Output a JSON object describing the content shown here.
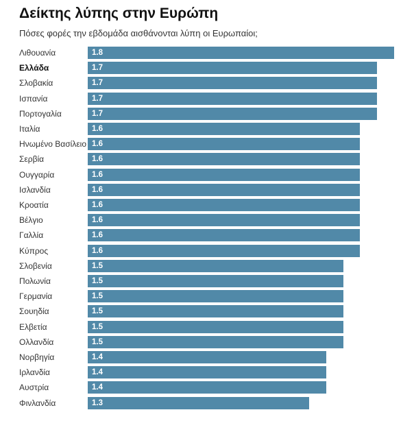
{
  "chart_data": {
    "type": "bar",
    "orientation": "horizontal",
    "title": "Δείκτης λύπης στην Ευρώπη",
    "subtitle": "Πόσες φορές την εβδομάδα αισθάνονται λύπη οι Ευρωπαίοι;",
    "highlight": "Ελλάδα",
    "color": "#5189a8",
    "xlim": [
      0,
      1.8
    ],
    "categories": [
      "Λιθουανία",
      "Ελλάδα",
      "Σλοβακία",
      "Ισπανία",
      "Πορτογαλία",
      "Ιταλία",
      "Ηνωμένο Βασίλειο",
      "Σερβία",
      "Ουγγαρία",
      "Ισλανδία",
      "Κροατία",
      "Βέλγιο",
      "Γαλλία",
      "Κύπρος",
      "Σλοβενία",
      "Πολωνία",
      "Γερμανία",
      "Σουηδία",
      "Ελβετία",
      "Ολλανδία",
      "Νορβηγία",
      "Ιρλανδία",
      "Αυστρία",
      "Φινλανδία"
    ],
    "values": [
      1.8,
      1.7,
      1.7,
      1.7,
      1.7,
      1.6,
      1.6,
      1.6,
      1.6,
      1.6,
      1.6,
      1.6,
      1.6,
      1.6,
      1.5,
      1.5,
      1.5,
      1.5,
      1.5,
      1.5,
      1.4,
      1.4,
      1.4,
      1.3
    ]
  }
}
